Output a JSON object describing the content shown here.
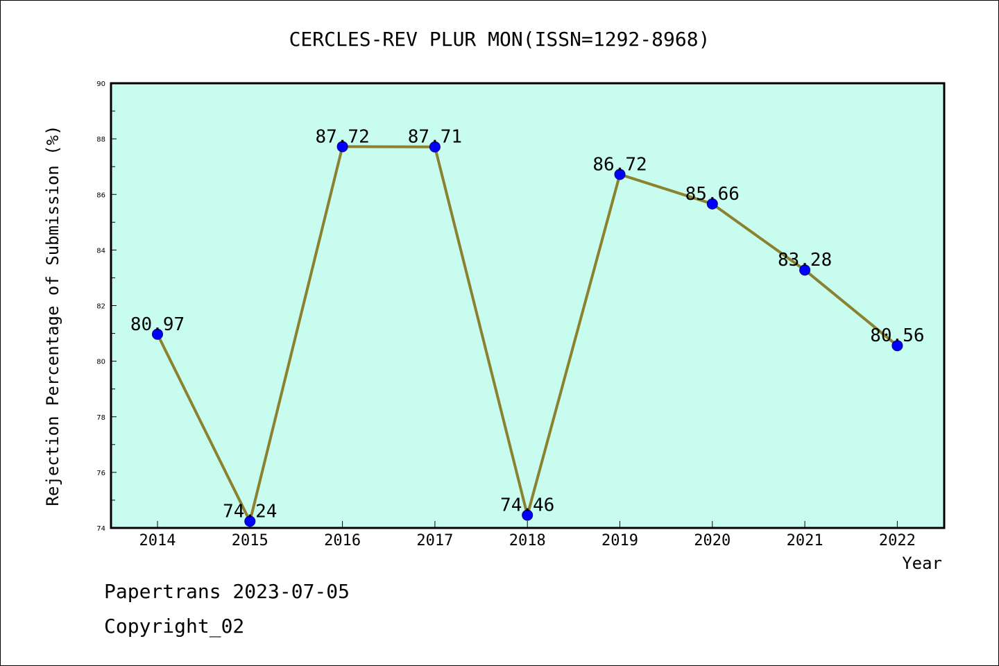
{
  "chart_data": {
    "type": "line",
    "title": "CERCLES-REV PLUR MON(ISSN=1292-8968)",
    "xlabel": "Year",
    "ylabel": "Rejection Percentage of Submission (%)",
    "categories": [
      "2014",
      "2015",
      "2016",
      "2017",
      "2018",
      "2019",
      "2020",
      "2021",
      "2022"
    ],
    "values": [
      80.97,
      74.24,
      87.72,
      87.71,
      74.46,
      86.72,
      85.66,
      83.28,
      80.56
    ],
    "data_labels": [
      "80.97",
      "74.24",
      "87.72",
      "87.71",
      "74.46",
      "86.72",
      "85.66",
      "83.28",
      "80.56"
    ],
    "yticks": [
      74,
      76,
      78,
      80,
      82,
      84,
      86,
      88,
      90
    ],
    "ylim": [
      74,
      90
    ],
    "grid": false,
    "legend": "none",
    "colors": {
      "plot_background": "#c8fcee",
      "line": "#8b8230",
      "marker": "#0000ff",
      "axis": "#000000"
    }
  },
  "footer": {
    "line1": "Papertrans 2023-07-05",
    "line2": "Copyright_02"
  }
}
